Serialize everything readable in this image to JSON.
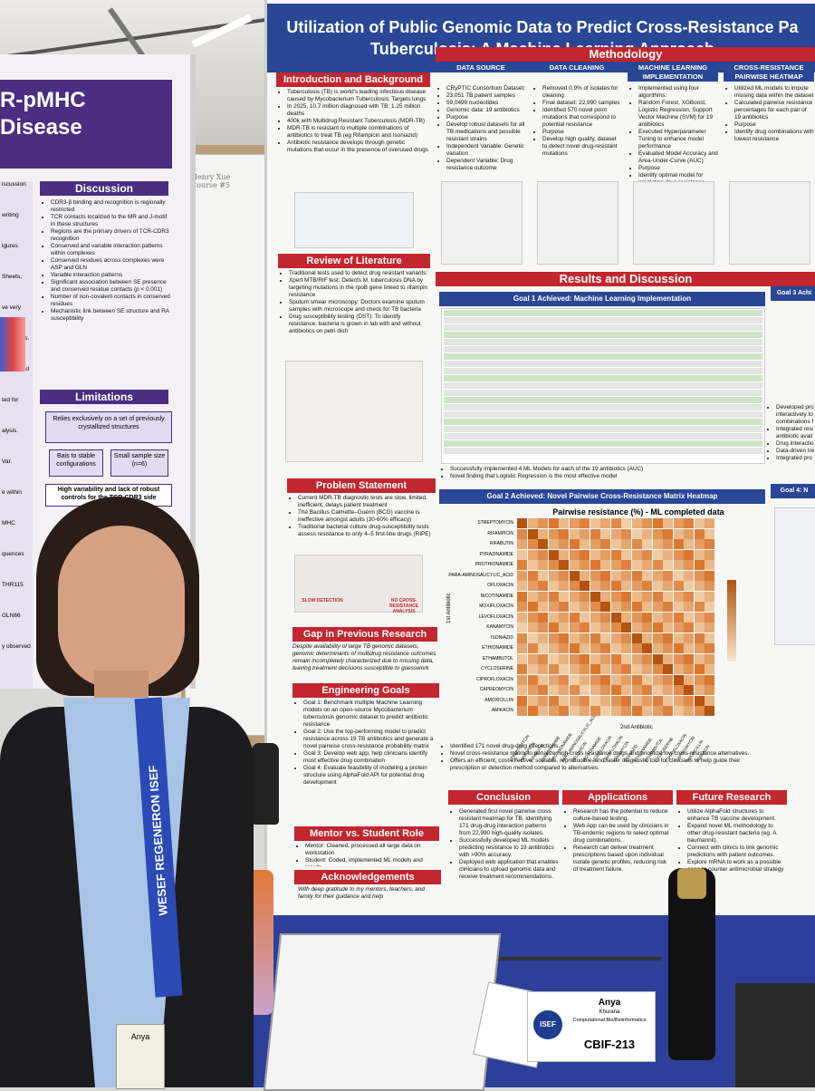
{
  "main_poster": {
    "title": [
      "Utilization of Public Genomic Data to Predict Cross-Resistance Pa",
      "Tuberculosis: A Machine Learning Approach"
    ],
    "intro": {
      "heading": "Introduction and Background",
      "bullets": [
        "Tuberculosis (TB) is world's leading infectious disease caused by Mycobacterium Tuberculosis; Targets lungs",
        "In 2025, 10.7 million diagnosed with TB; 1.25 million deaths",
        "400k with Multidrug Resistant Tuberculosis (MDR-TB)",
        "MDR-TB is resistant to multiple combinations of antibiotics to treat TB (eg Rifampicin and Isoniazid)",
        "Antibiotic resistance develops through genetic mutations that occur in the presence of overused drugs"
      ]
    },
    "literature": {
      "heading": "Review of Literature",
      "bullets": [
        "Traditional tests used to detect drug resistant variants:",
        "Xpert MTB/RIF test: Detects M. tuberculosis DNA by targeting mutations in the rpoB gene linked to rifampin resistance",
        "Sputum smear microscopy: Doctors examine sputum samples with microscope and check for TB bacteria",
        "Drug susceptibility testing (DST): To identify resistance, bacteria is grown in lab with and without antibiotics on petri dish"
      ]
    },
    "problem": {
      "heading": "Problem Statement",
      "bullets": [
        "Current MDR-TB diagnostic tests are slow, limited, inefficient, delays patient treatment",
        "The Bacillus Calmette–Guérin (BCG) vaccine is ineffective amongst adults (30-60% efficacy)",
        "Traditional bacterial culture drug-susceptibility tests assess resistance to only 4–5 first-line drugs (RIPE)"
      ],
      "icons": [
        "SLOW DETECTION",
        "NO CROSS-RESISTANCE ANALYSIS"
      ]
    },
    "gap": {
      "heading": "Gap in Previous Research",
      "text": "Despite availability of large TB genomic datasets, genomic determinants of multidrug resistance outcomes remain incompletely characterized due to missing data, leaving treatment decisions susceptible to guesswork"
    },
    "goals": {
      "heading": "Engineering Goals",
      "bullets": [
        "Goal 1: Benchmark multiple Machine Learning models on an open-source Mycobacterium tuberculosis genomic dataset to predict antibiotic resistance",
        "Goal 2: Use the top-performing model to predict resistance across 19 TB antibiotics and generate a novel pairwise cross-resistance probability matrix",
        "Goal 3: Develop web app; help clinicians identify most effective drug combination",
        "Goal 4: Evaluate feasibility of modeling a protein structure using AlphaFold API for potential drug development"
      ]
    },
    "mentor": {
      "heading": "Mentor vs. Student Role",
      "bullets": [
        "Mentor: Cleaned, processed all large data on workstation",
        "Student: Coded, implemented ML models and results"
      ]
    },
    "ack": {
      "heading": "Acknowledgements",
      "text": "With deep gratitude to my mentors, teachers, and family for their guidance and help"
    },
    "methodology": {
      "heading": "Methodology",
      "columns": [
        {
          "heading": "DATA SOURCE",
          "bullets": [
            "CRyPTIC Consortium Dataset:",
            "23,051 TB patient samples",
            "59,0499 nucleotides",
            "Genomic data: 19 antibiotics",
            "Purpose",
            "Develop robust datasets for all TB medications and possible resistant strains",
            "Independent Variable: Genetic variation",
            "Dependent Variable: Drug resistance outcome"
          ]
        },
        {
          "heading": "DATA CLEANING",
          "bullets": [
            "Removed 0.9% of isolates for cleaning",
            "Final dataset: 22,990 samples",
            "Identified 570 novel point mutations that correspond to potential resistance",
            "Purpose",
            "Develop high quality, dataset to detect novel drug-resistant mutations"
          ]
        },
        {
          "heading": "MACHINE LEARNING IMPLEMENTATION",
          "bullets": [
            "Implemented using four algorithms:",
            "Random Forest, XGBoost, Logistic Regression, Support Vector Machine (SVM) for 19 antibiotics",
            "Executed Hyperparameter Tuning to enhance model performance",
            "Evaluated Model Accuracy and Area-Under-Curve (AUC)",
            "Purpose",
            "Identify optimal model for predicting drug resistance"
          ]
        },
        {
          "heading": "CROSS-RESISTANCE PAIRWISE HEATMAP",
          "bullets": [
            "Utilized ML models to impute missing data within the dataset",
            "Calculated pairwise resistance percentages for each pair of 19 antibiotics",
            "Purpose",
            "Identify drug combinations with lowest resistance"
          ]
        }
      ]
    },
    "results": {
      "heading": "Results and Discussion",
      "goal1": "Goal 1 Achieved: Machine Learning Implementation",
      "goal1_notes": [
        "Successfully implemented 4 ML Models for each of the 19 antibiotics (AUC)",
        "Novel finding that Logistic Regression is the most effective model"
      ],
      "goal2": "Goal 2 Achieved: Novel Pairwise Cross-Resistance Matrix Heatmap",
      "heatmap_title": "Pairwise resistance (%) - ML completed data",
      "y_title": "1st Antibiotic",
      "x_title": "2nd Antibiotic",
      "drugs": [
        "STREPTOMYCIN",
        "RIFAMPICIN",
        "RIFABUTIN",
        "PYRAZINAMIDE",
        "PROTHIONAMIDE",
        "PARA-AMINOSALICYLIC_ACID",
        "OFLOXACIN",
        "NICOTINAMIDE",
        "MOXIFLOXACIN",
        "LEVOFLOXACIN",
        "KANAMYCIN",
        "ISONIAZID",
        "ETHIONAMIDE",
        "ETHAMBUTOL",
        "CYCLOSERINE",
        "CIPROFLOXACIN",
        "CAPREOMYCIN",
        "AMOXICILLIN",
        "AMIKACIN"
      ],
      "goal2_notes": [
        "Identified 171 novel drug-drug interactions.",
        "Novel cross-resistance matrix to penalize high cross resistance drugs and prioritize low cross-resistance alternatives.",
        "Offers an efficient, cost effective, scalable, reproducible, and faster diagnostic tool for clinicians to help guide their prescription or detection method compared to alternatives."
      ],
      "side_headings": [
        "Goal 3 Achi",
        "Goal 4: N"
      ],
      "side_text": [
        "Developed pro interactively to combinations f",
        "Integrated resi antibiotic avail",
        "Drug interactio",
        "Data-driven tre",
        "Integrated pro"
      ]
    },
    "conclusion": {
      "heading": "Conclusion",
      "bullets": [
        "Generated first novel pairwise cross resistant heatmap for TB, identifying 171 drug-drug interaction patterns from 22,990 high-quality isolates.",
        "Successfully developed ML models predicting resistance to 19 antibiotics with >90% accuracy.",
        "Deployed web application that enables clinicians to upload genomic data and receive treatment recommendations."
      ]
    },
    "applications": {
      "heading": "Applications",
      "bullets": [
        "Research has the potential to reduce culture-based testing.",
        "Web App can be used by clinicians in TB-endemic regions to select optimal drug combinations.",
        "Research can deliver treatment prescriptions based upon individual isolate genetic profiles, reducing risk of treatment failure."
      ]
    },
    "future": {
      "heading": "Future Research",
      "bullets": [
        "Utilize AlphaFold structures to enhance TB vaccine development.",
        "Expand novel ML methodology to other drug-resistant bacteria (eg. A. baumannii).",
        "Connect with clinics to link genomic predictions with patient outcomes.",
        "Explore mRNA to work as a possible gene to counter antimicrobial strategy for TB."
      ]
    }
  },
  "left_poster": {
    "title": [
      "R-pMHC",
      "Disease"
    ],
    "discussion": {
      "heading": "Discussion",
      "bullets": [
        "CDR3-β binding and recognition is regionally restricted",
        "TCR contacts localized to the MR and J-motif in these structures",
        "Regions are the primary drivers of TCR-CDR3 recognition",
        "Conserved and variable interaction patterns within complexes",
        "Conserved residues across complexes were ASP and GLN",
        "Variable interaction patterns",
        "Significant association between SE presence and conserved residue contacts (p < 0.001)",
        "Number of non-covalent contacts in conserved residues",
        "Mechanistic link between SE structure and RA susceptibility"
      ]
    },
    "limitations": {
      "heading": "Limitations",
      "box": "Relies exclusively on a set of previously crystallized structures",
      "boxes": [
        "Bais to stable configurations",
        "Small sample size (n=6)"
      ],
      "bottom": "High variability and lack of robust controls for the TCR-CDR3 side"
    },
    "edge_text": [
      "iscussion",
      "writing",
      "igures",
      "Sheets,",
      "ve very",
      "heatmaps.",
      "ences and",
      "ted for",
      "alysis.",
      "Var.",
      "e within",
      "MHC",
      "quences",
      "THR115",
      "GLN66",
      "y observed"
    ]
  },
  "whiteboard_note": "Henry Xue Course #5",
  "lanyard": "WESEF REGENERON ISEF",
  "badge": "Anya",
  "placard": {
    "name": "Anya",
    "surname": "Khurana",
    "category": "Computational Bio/Bioinformatics",
    "logo": "ISEF",
    "code": "CBIF-213"
  }
}
